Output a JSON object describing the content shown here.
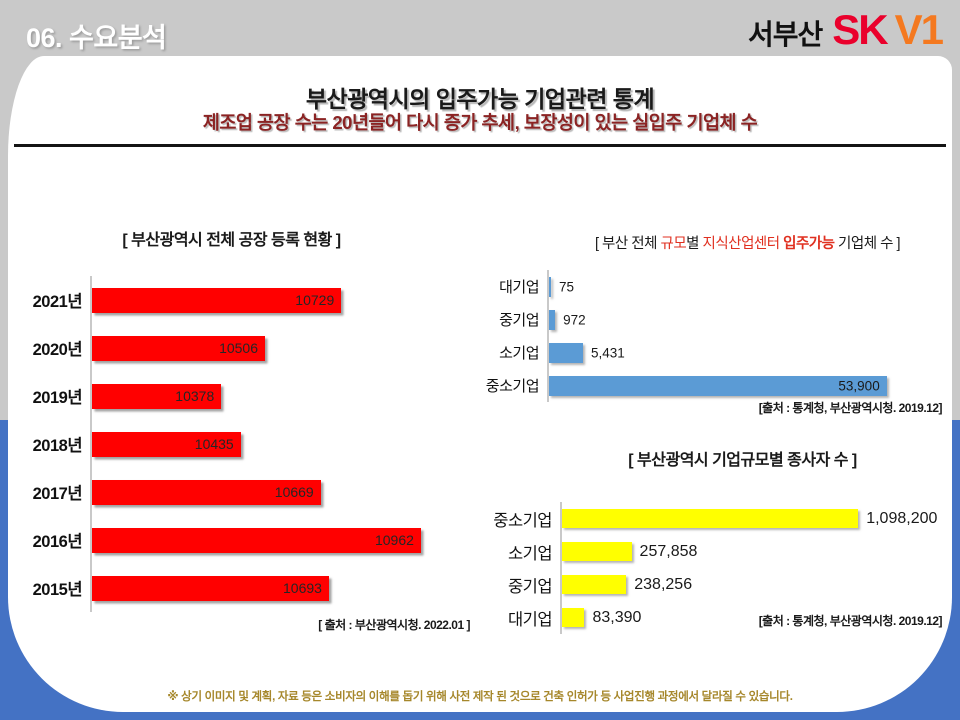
{
  "page": {
    "section_label": "06. 수요분석",
    "logo": {
      "region": "서부산",
      "brand_sk": "SK",
      "brand_v1": "V1"
    },
    "title": "부산광역시의 입주가능 기업관련 통계",
    "subtitle": "제조업 공장 수는 20년들어 다시 증가 추세, 보장성이 있는 실입주 기업체 수",
    "footer_disclaimer": "※ 상기 이미지 및 계획, 자료 등은 소비자의 이해를 돕기 위해 사전 제작 된 것으로 건축 인허가 등 사업진행 과정에서 달라질 수 있습니다.",
    "colors": {
      "frame_blue": "#4472C4",
      "band_gray": "#C9C9C9",
      "sk_red": "#EA002C",
      "v1_orange": "#F47920",
      "factory_bar_red": "#FF0000",
      "company_bar_blue": "#5B9BD5",
      "workers_bar_yellow": "#FFFF00",
      "footer_gold": "#A6872B",
      "subtitle_red": "#8B2323"
    }
  },
  "chart_data": [
    {
      "id": "factory_registrations",
      "type": "bar",
      "orientation": "horizontal",
      "title": "[ 부산광역시 전체 공장 등록 현황 ]",
      "categories": [
        "2021년",
        "2020년",
        "2019년",
        "2018년",
        "2017년",
        "2016년",
        "2015년"
      ],
      "values": [
        10729,
        10506,
        10378,
        10435,
        10669,
        10962,
        10693
      ],
      "value_labels": [
        "10729",
        "10506",
        "10378",
        "10435",
        "10669",
        "10962",
        "10693"
      ],
      "xlim": [
        10000,
        11050
      ],
      "bar_color": "#FF0000",
      "value_position": "inside",
      "legend": "none",
      "grid": "off",
      "source": "[ 출처 : 부산광역시청. 2022.01 ]"
    },
    {
      "id": "kic_eligible_companies",
      "type": "bar",
      "orientation": "horizontal",
      "title_segments": [
        {
          "text": "[ 부산 전체 ",
          "color": "#1a1a1a",
          "bold": false
        },
        {
          "text": "규모",
          "color": "#E03020",
          "bold": false
        },
        {
          "text": "별 ",
          "color": "#1a1a1a",
          "bold": false
        },
        {
          "text": "지식산업센터 ",
          "color": "#E03020",
          "bold": false
        },
        {
          "text": "입주가능",
          "color": "#E03020",
          "bold": true
        },
        {
          "text": " 기업체 수 ]",
          "color": "#1a1a1a",
          "bold": false
        }
      ],
      "categories": [
        "대기업",
        "중기업",
        "소기업",
        "중소기업"
      ],
      "values": [
        75,
        972,
        5431,
        53900
      ],
      "value_labels": [
        "75",
        "972",
        "5,431",
        "53,900"
      ],
      "xlim": [
        0,
        64000
      ],
      "bar_color": "#5B9BD5",
      "value_position": "auto",
      "legend": "none",
      "grid": "off",
      "source": "[출처 : 통계청, 부산광역시청. 2019.12]"
    },
    {
      "id": "workers_by_company_size",
      "type": "bar",
      "orientation": "horizontal",
      "title": "[ 부산광역시 기업규모별 종사자 수 ]",
      "categories": [
        "중소기업",
        "소기업",
        "중기업",
        "대기업"
      ],
      "values": [
        1098200,
        257858,
        238256,
        83390
      ],
      "value_labels": [
        "1,098,200",
        "257,858",
        "238,256",
        "83,390"
      ],
      "xlim": [
        0,
        1420000
      ],
      "bar_color": "#FFFF00",
      "value_position": "outside",
      "legend": "none",
      "grid": "off",
      "source": "[출처 : 통계청, 부산광역시청. 2019.12]"
    }
  ]
}
